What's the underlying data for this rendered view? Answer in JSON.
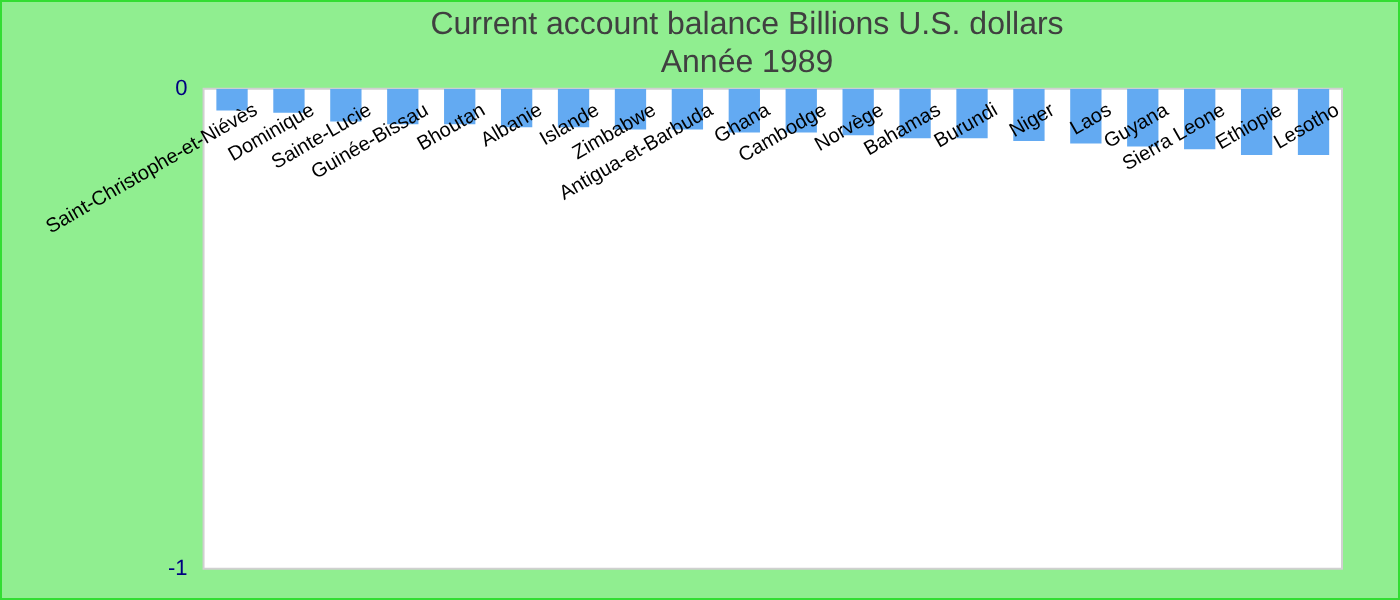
{
  "chart_data": {
    "type": "bar",
    "title": "Current account balance Billions U.S. dollars",
    "subtitle": "Année 1989",
    "categories": [
      "Saint-Christophe-et-Niévès",
      "Dominique",
      "Sainte-Lucie",
      "Guinée-Bissau",
      "Bhoutan",
      "Albanie",
      "Islande",
      "Zimbabwe",
      "Antigua-et-Barbuda",
      "Ghana",
      "Cambodge",
      "Norvège",
      "Bahamas",
      "Burundi",
      "Niger",
      "Laos",
      "Guyana",
      "Sierra Leone",
      "Ethiopie",
      "Lesotho"
    ],
    "values": [
      -0.045,
      -0.05,
      -0.068,
      -0.074,
      -0.074,
      -0.08,
      -0.08,
      -0.085,
      -0.085,
      -0.091,
      -0.091,
      -0.097,
      -0.103,
      -0.103,
      -0.109,
      -0.114,
      -0.12,
      -0.126,
      -0.138,
      -0.138
    ],
    "color": "#63aaf2",
    "ylim": [
      -1,
      0
    ],
    "yticks": [
      -1,
      0
    ],
    "grid": false,
    "legend": false
  }
}
